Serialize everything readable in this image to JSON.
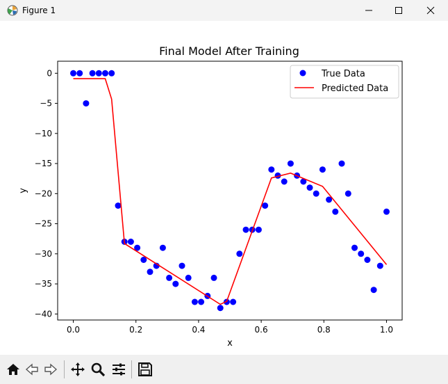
{
  "window": {
    "title": "Figure 1"
  },
  "toolbar": {
    "icons": [
      "home-icon",
      "back-icon",
      "forward-icon",
      "pan-icon",
      "zoom-icon",
      "configure-subplots-icon",
      "save-icon"
    ]
  },
  "chart_data": {
    "type": "scatter",
    "title": "Final Model After Training",
    "xlabel": "x",
    "ylabel": "y",
    "xlim": [
      -0.05,
      1.05
    ],
    "ylim": [
      -41,
      2
    ],
    "xticks": [
      0.0,
      0.2,
      0.4,
      0.6,
      0.8,
      1.0
    ],
    "xtick_labels": [
      "0.0",
      "0.2",
      "0.4",
      "0.6",
      "0.8",
      "1.0"
    ],
    "yticks": [
      0,
      -5,
      -10,
      -15,
      -20,
      -25,
      -30,
      -35,
      -40
    ],
    "ytick_labels": [
      "0",
      "−5",
      "−10",
      "−15",
      "−20",
      "−25",
      "−30",
      "−35",
      "−40"
    ],
    "grid": false,
    "legend_position": "top-right",
    "series": [
      {
        "name": "True Data",
        "kind": "scatter",
        "color": "#0000ff",
        "x": [
          0.0,
          0.0204,
          0.0408,
          0.0612,
          0.0816,
          0.102,
          0.1224,
          0.1429,
          0.1633,
          0.1837,
          0.2041,
          0.2245,
          0.2449,
          0.2653,
          0.2857,
          0.3061,
          0.3265,
          0.3469,
          0.3673,
          0.3878,
          0.4082,
          0.4286,
          0.449,
          0.4694,
          0.4898,
          0.5102,
          0.5306,
          0.551,
          0.5714,
          0.5918,
          0.6122,
          0.6327,
          0.6531,
          0.6735,
          0.6939,
          0.7143,
          0.7347,
          0.7551,
          0.7755,
          0.7959,
          0.8163,
          0.8367,
          0.8571,
          0.8776,
          0.898,
          0.9184,
          0.9388,
          0.9592,
          0.9796,
          1.0
        ],
        "y": [
          0,
          0,
          -5,
          0,
          0,
          0,
          0,
          -22,
          -28,
          -28,
          -29,
          -31,
          -33,
          -32,
          -29,
          -34,
          -35,
          -32,
          -34,
          -38,
          -38,
          -37,
          -34,
          -39,
          -38,
          -38,
          -30,
          -26,
          -26,
          -26,
          -22,
          -16,
          -17,
          -18,
          -15,
          -17,
          -18,
          -19,
          -20,
          -16,
          -21,
          -23,
          -15,
          -20,
          -29,
          -30,
          -31,
          -36,
          -32,
          -23
        ]
      },
      {
        "name": "Predicted Data",
        "kind": "line",
        "color": "#ff0000",
        "x": [
          0.0,
          0.102,
          0.1224,
          0.1633,
          0.4694,
          0.4898,
          0.6327,
          0.6939,
          0.7959,
          1.0
        ],
        "y": [
          -0.9,
          -0.9,
          -4.3,
          -28.3,
          -38.4,
          -37.9,
          -17.4,
          -16.6,
          -18.8,
          -31.8
        ]
      }
    ]
  }
}
